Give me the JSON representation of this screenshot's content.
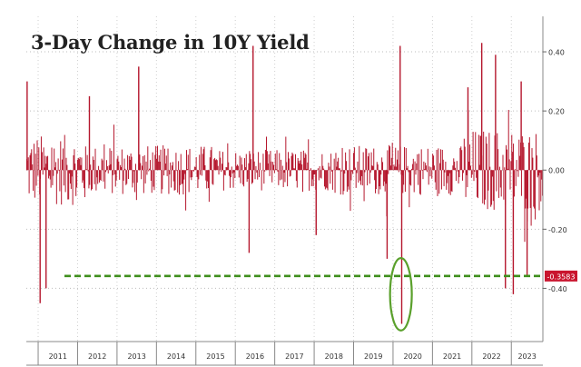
{
  "chart_data": {
    "type": "bar",
    "title": "3-Day Change in 10Y Yield",
    "xlabel": "",
    "ylabel": "",
    "x_tick_labels": [
      "2011",
      "2012",
      "2013",
      "2014",
      "2015",
      "2016",
      "2017",
      "2018",
      "2019",
      "2020",
      "2021",
      "2022",
      "2023"
    ],
    "x_range": [
      2010.7,
      2023.8
    ],
    "ylim": [
      -0.58,
      0.52
    ],
    "y_ticks": [
      0.4,
      0.2,
      0.0,
      -0.2,
      -0.4
    ],
    "y_tick_labels": [
      "0.40",
      "0.20",
      "0.00",
      "-0.20",
      "-0.40"
    ],
    "grid": true,
    "series": [
      {
        "color": "#b5172d",
        "notable_points": [
          {
            "x": 2010.72,
            "y": 0.3
          },
          {
            "x": 2011.05,
            "y": -0.45
          },
          {
            "x": 2011.2,
            "y": -0.4
          },
          {
            "x": 2012.3,
            "y": 0.25
          },
          {
            "x": 2013.55,
            "y": 0.35
          },
          {
            "x": 2016.45,
            "y": 0.42
          },
          {
            "x": 2016.35,
            "y": -0.28
          },
          {
            "x": 2018.05,
            "y": -0.22
          },
          {
            "x": 2019.85,
            "y": -0.3
          },
          {
            "x": 2020.18,
            "y": 0.42
          },
          {
            "x": 2020.22,
            "y": -0.52
          },
          {
            "x": 2021.9,
            "y": 0.28
          },
          {
            "x": 2022.25,
            "y": 0.43
          },
          {
            "x": 2022.6,
            "y": 0.39
          },
          {
            "x": 2022.85,
            "y": -0.4
          },
          {
            "x": 2023.05,
            "y": -0.42
          },
          {
            "x": 2023.25,
            "y": 0.3
          },
          {
            "x": 2023.4,
            "y": -0.3583
          }
        ]
      }
    ],
    "reference_line": {
      "y": -0.3583,
      "style": "dashed",
      "color": "#3f8f1d"
    },
    "last_value": {
      "label": "-0.3583",
      "value": -0.3583,
      "color": "#c9152e"
    },
    "annotation": {
      "shape": "ellipse",
      "color": "#5aa02c",
      "x": 2020.2,
      "y_range": [
        -0.53,
        -0.31
      ]
    }
  }
}
